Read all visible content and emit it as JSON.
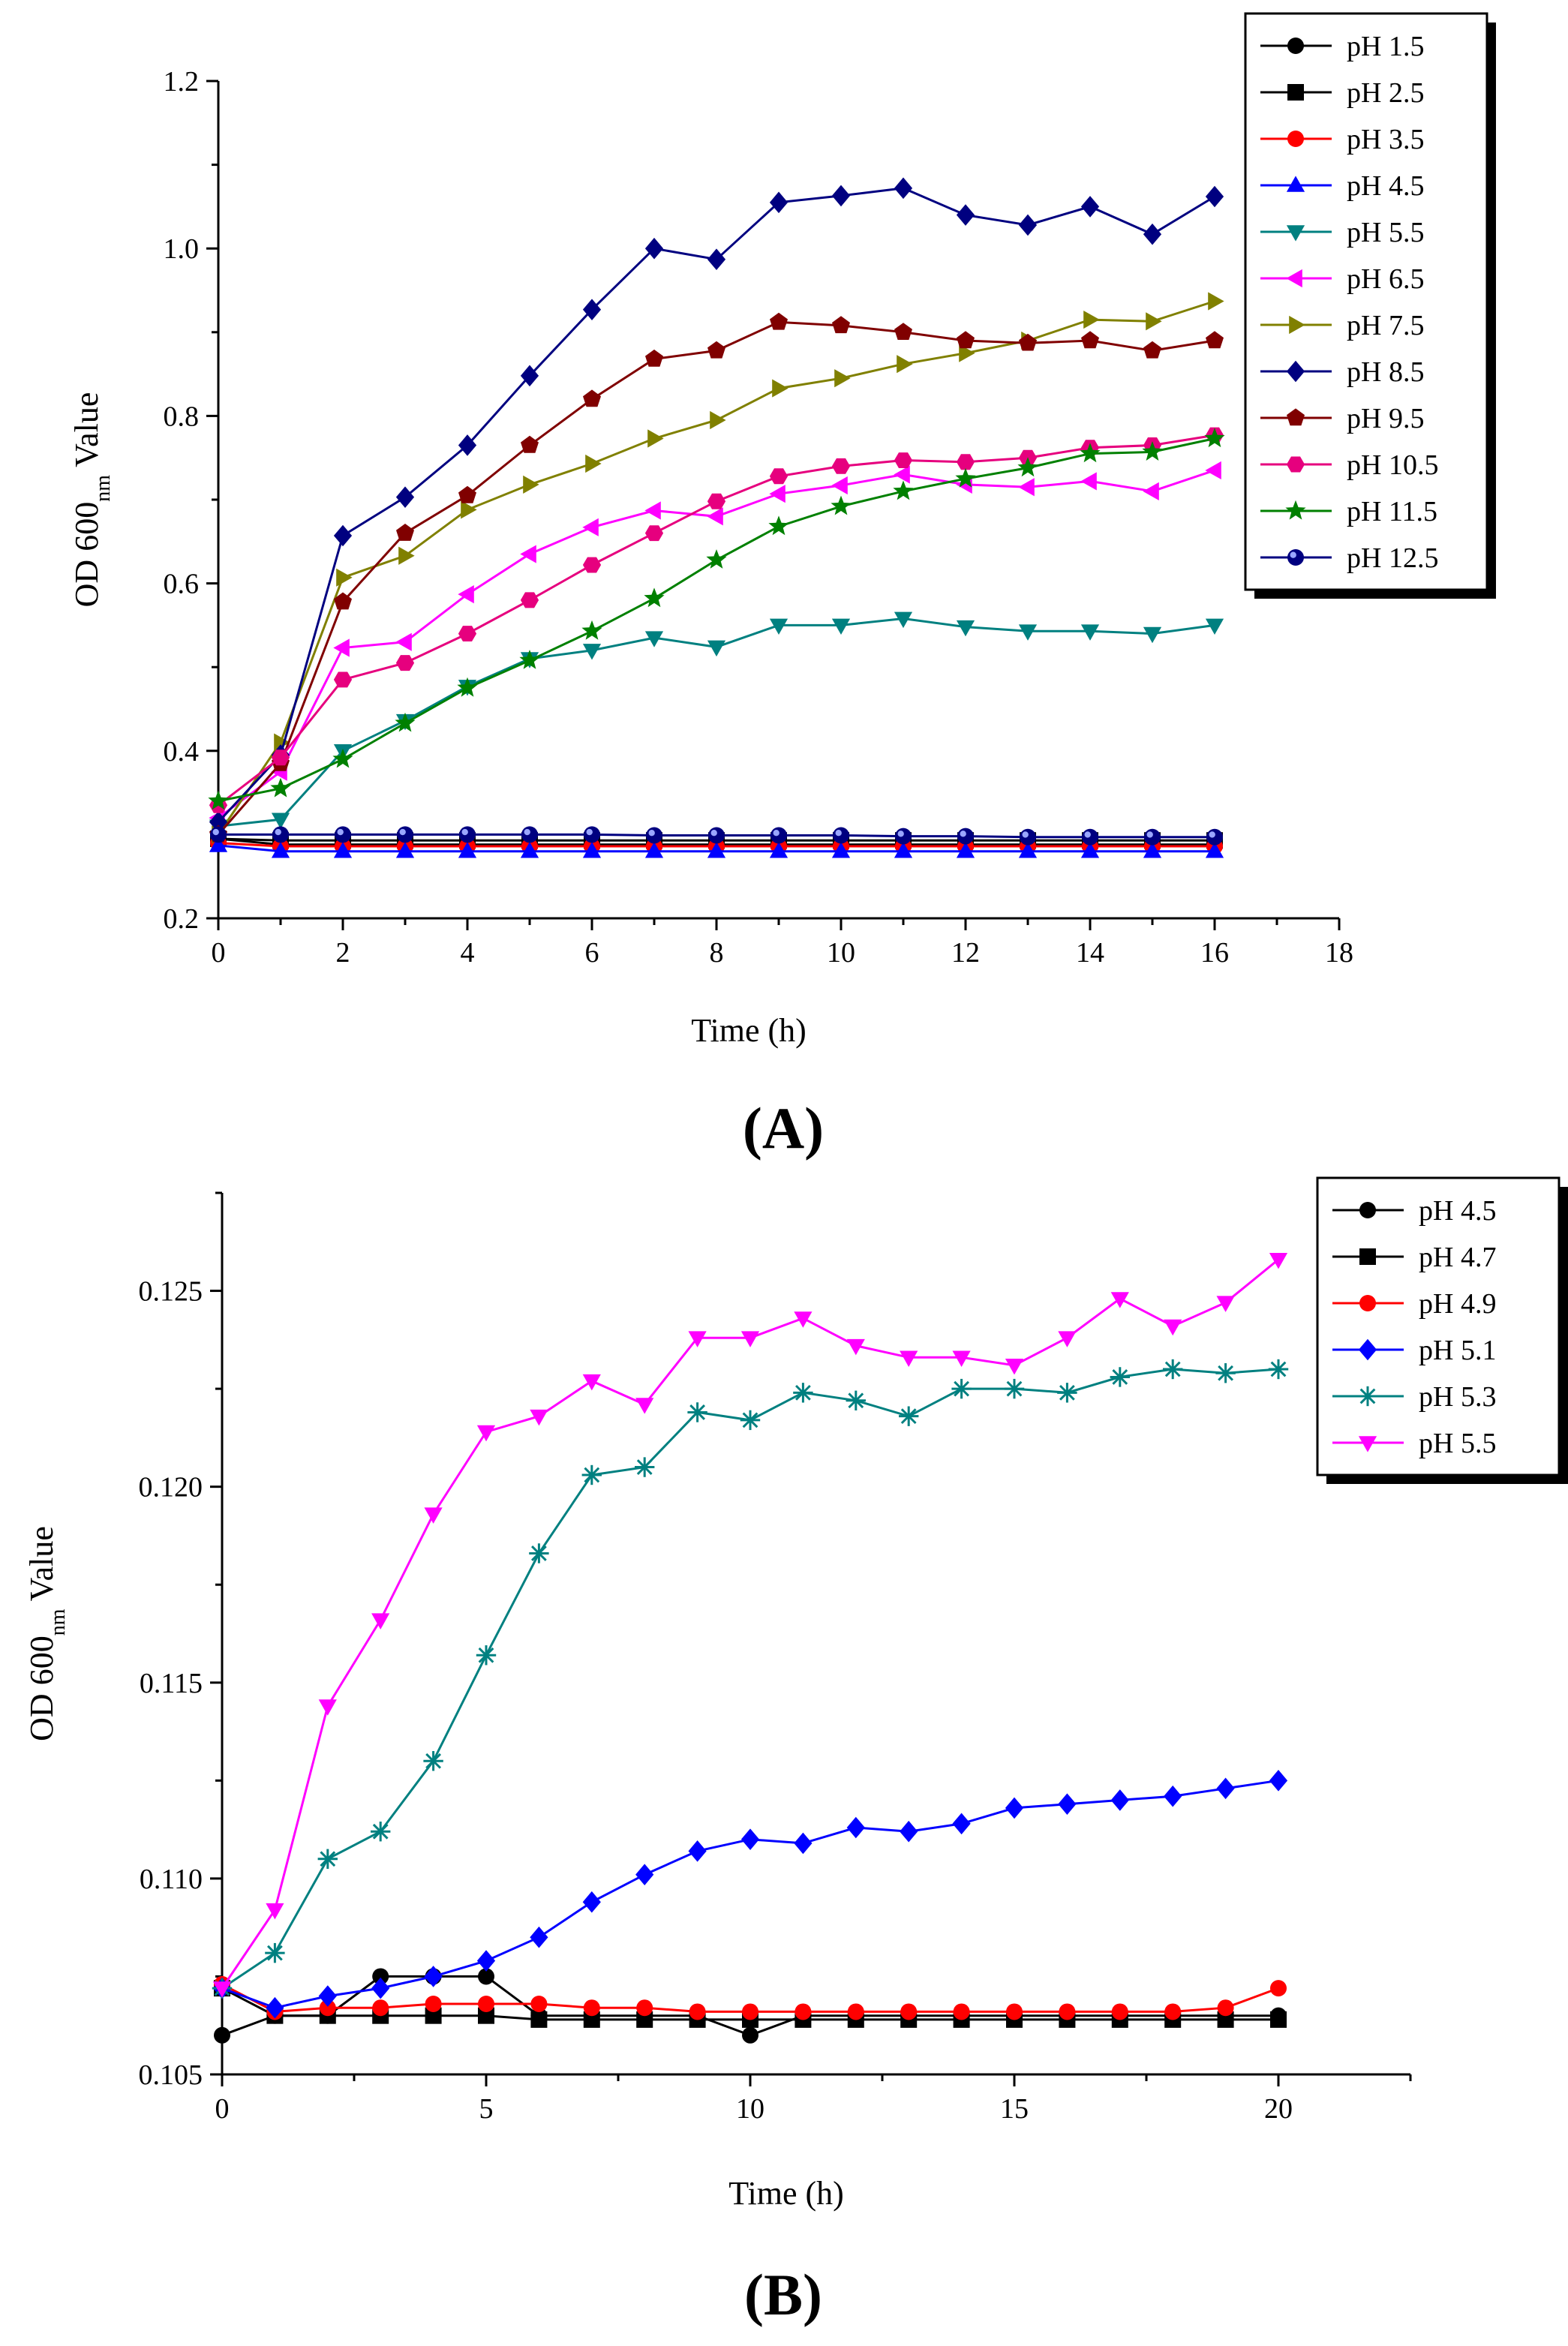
{
  "chart_data": [
    {
      "type": "line",
      "panel_label": "(A)",
      "xlabel": "Time (h)",
      "ylabel_main": "OD 600",
      "ylabel_sub": "nm",
      "ylabel_tail": " Value",
      "xlim": [
        0,
        18
      ],
      "ylim": [
        0.2,
        1.2
      ],
      "xticks": [
        0,
        2,
        4,
        6,
        8,
        10,
        12,
        14,
        16,
        18
      ],
      "yticks": [
        0.2,
        0.4,
        0.6,
        0.8,
        1.0,
        1.2
      ],
      "xtick_labels": [
        "0",
        "2",
        "4",
        "6",
        "8",
        "10",
        "12",
        "14",
        "16",
        "18"
      ],
      "ytick_labels": [
        "0.2",
        "0.4",
        "0.6",
        "0.8",
        "1.0",
        "1.2"
      ],
      "x": [
        0,
        1,
        2,
        3,
        4,
        5,
        6,
        7,
        8,
        9,
        10,
        11,
        12,
        13,
        14,
        15,
        16
      ],
      "legend_position": "top-right",
      "series": [
        {
          "name": "pH 1.5",
          "color": "#000000",
          "marker": "circle",
          "values": [
            0.295,
            0.288,
            0.288,
            0.288,
            0.288,
            0.288,
            0.288,
            0.288,
            0.288,
            0.288,
            0.288,
            0.288,
            0.288,
            0.288,
            0.288,
            0.288,
            0.288
          ]
        },
        {
          "name": "pH 2.5",
          "color": "#000000",
          "marker": "square",
          "values": [
            0.295,
            0.293,
            0.293,
            0.293,
            0.293,
            0.293,
            0.293,
            0.293,
            0.293,
            0.293,
            0.293,
            0.293,
            0.293,
            0.293,
            0.293,
            0.293,
            0.293
          ]
        },
        {
          "name": "pH 3.5",
          "color": "#ff0000",
          "marker": "circle",
          "values": [
            0.29,
            0.286,
            0.286,
            0.286,
            0.286,
            0.286,
            0.286,
            0.286,
            0.286,
            0.286,
            0.286,
            0.286,
            0.286,
            0.286,
            0.286,
            0.286,
            0.286
          ]
        },
        {
          "name": "pH 4.5",
          "color": "#0000ff",
          "marker": "triangle-up",
          "values": [
            0.287,
            0.28,
            0.28,
            0.28,
            0.28,
            0.28,
            0.28,
            0.28,
            0.28,
            0.28,
            0.28,
            0.28,
            0.28,
            0.28,
            0.28,
            0.28,
            0.28
          ]
        },
        {
          "name": "pH 5.5",
          "color": "#008080",
          "marker": "triangle-down",
          "values": [
            0.31,
            0.318,
            0.4,
            0.436,
            0.477,
            0.51,
            0.52,
            0.535,
            0.524,
            0.55,
            0.55,
            0.558,
            0.548,
            0.543,
            0.543,
            0.54,
            0.55
          ]
        },
        {
          "name": "pH 6.5",
          "color": "#ff00ff",
          "marker": "triangle-left",
          "values": [
            0.32,
            0.375,
            0.523,
            0.53,
            0.587,
            0.635,
            0.667,
            0.687,
            0.68,
            0.707,
            0.717,
            0.73,
            0.718,
            0.715,
            0.722,
            0.71,
            0.735
          ]
        },
        {
          "name": "pH 7.5",
          "color": "#808000",
          "marker": "triangle-right",
          "values": [
            0.3,
            0.41,
            0.607,
            0.633,
            0.688,
            0.718,
            0.743,
            0.773,
            0.795,
            0.833,
            0.845,
            0.862,
            0.875,
            0.89,
            0.915,
            0.913,
            0.937
          ]
        },
        {
          "name": "pH 8.5",
          "color": "#000080",
          "marker": "diamond",
          "values": [
            0.315,
            0.395,
            0.657,
            0.703,
            0.765,
            0.848,
            0.927,
            1.0,
            0.987,
            1.055,
            1.063,
            1.072,
            1.04,
            1.028,
            1.05,
            1.017,
            1.062
          ]
        },
        {
          "name": "pH 9.5",
          "color": "#800000",
          "marker": "pentagon",
          "values": [
            0.3,
            0.385,
            0.578,
            0.66,
            0.705,
            0.765,
            0.82,
            0.868,
            0.878,
            0.912,
            0.908,
            0.9,
            0.89,
            0.887,
            0.89,
            0.878,
            0.89
          ]
        },
        {
          "name": "pH 10.5",
          "color": "#e6007e",
          "marker": "hexagon",
          "values": [
            0.335,
            0.392,
            0.485,
            0.505,
            0.54,
            0.58,
            0.622,
            0.66,
            0.698,
            0.728,
            0.74,
            0.747,
            0.745,
            0.75,
            0.762,
            0.765,
            0.777
          ]
        },
        {
          "name": "pH 11.5",
          "color": "#008000",
          "marker": "star",
          "values": [
            0.34,
            0.355,
            0.39,
            0.433,
            0.475,
            0.508,
            0.543,
            0.582,
            0.628,
            0.668,
            0.692,
            0.71,
            0.725,
            0.738,
            0.755,
            0.757,
            0.773
          ]
        },
        {
          "name": "pH 12.5",
          "color": "#000080",
          "marker": "sphere",
          "values": [
            0.3,
            0.3,
            0.3,
            0.3,
            0.3,
            0.3,
            0.3,
            0.299,
            0.299,
            0.299,
            0.299,
            0.298,
            0.298,
            0.297,
            0.297,
            0.297,
            0.297
          ]
        }
      ]
    },
    {
      "type": "line",
      "panel_label": "(B)",
      "xlabel": "Time (h)",
      "ylabel_main": "OD 600",
      "ylabel_sub": "nm",
      "ylabel_tail": " Value",
      "xlim": [
        0,
        22.5
      ],
      "ylim": [
        0.105,
        0.1275
      ],
      "xticks": [
        0,
        5,
        10,
        15,
        20
      ],
      "yticks": [
        0.105,
        0.11,
        0.115,
        0.12,
        0.125
      ],
      "xtick_labels": [
        "0",
        "5",
        "10",
        "15",
        "20"
      ],
      "ytick_labels": [
        "0.105",
        "0.110",
        "0.115",
        "0.120",
        "0.125"
      ],
      "x": [
        0,
        1,
        2,
        3,
        4,
        5,
        6,
        7,
        8,
        9,
        10,
        11,
        12,
        13,
        14,
        15,
        16,
        17,
        18,
        19,
        20
      ],
      "legend_position": "top-right",
      "series": [
        {
          "name": "pH 4.5",
          "color": "#000000",
          "marker": "circle",
          "values": [
            0.106,
            0.1065,
            0.1065,
            0.1075,
            0.1075,
            0.1075,
            0.1065,
            0.1065,
            0.1065,
            0.1065,
            0.106,
            0.1065,
            0.1065,
            0.1065,
            0.1065,
            0.1065,
            0.1065,
            0.1065,
            0.1065,
            0.1065,
            0.1065
          ]
        },
        {
          "name": "pH 4.7",
          "color": "#000000",
          "marker": "square",
          "values": [
            0.1072,
            0.1065,
            0.1065,
            0.1065,
            0.1065,
            0.1065,
            0.1064,
            0.1064,
            0.1064,
            0.1064,
            0.1064,
            0.1064,
            0.1064,
            0.1064,
            0.1064,
            0.1064,
            0.1064,
            0.1064,
            0.1064,
            0.1064,
            0.1064
          ]
        },
        {
          "name": "pH 4.9",
          "color": "#ff0000",
          "marker": "circle",
          "values": [
            0.1073,
            0.1066,
            0.1067,
            0.1067,
            0.1068,
            0.1068,
            0.1068,
            0.1067,
            0.1067,
            0.1066,
            0.1066,
            0.1066,
            0.1066,
            0.1066,
            0.1066,
            0.1066,
            0.1066,
            0.1066,
            0.1066,
            0.1067,
            0.1072
          ]
        },
        {
          "name": "pH 5.1",
          "color": "#0000ff",
          "marker": "diamond",
          "values": [
            0.1072,
            0.1067,
            0.107,
            0.1072,
            0.1075,
            0.1079,
            0.1085,
            0.1094,
            0.1101,
            0.1107,
            0.111,
            0.1109,
            0.1113,
            0.1112,
            0.1114,
            0.1118,
            0.1119,
            0.112,
            0.1121,
            0.1123,
            0.1125
          ]
        },
        {
          "name": "pH 5.3",
          "color": "#008080",
          "marker": "asterisk",
          "values": [
            0.1072,
            0.1081,
            0.1105,
            0.1112,
            0.113,
            0.1157,
            0.1183,
            0.1203,
            0.1205,
            0.1219,
            0.1217,
            0.1224,
            0.1222,
            0.1218,
            0.1225,
            0.1225,
            0.1224,
            0.1228,
            0.123,
            0.1229,
            0.123
          ]
        },
        {
          "name": "pH 5.5",
          "color": "#ff00ff",
          "marker": "triangle-down",
          "values": [
            0.1072,
            0.1092,
            0.1144,
            0.1166,
            0.1193,
            0.1214,
            0.1218,
            0.1227,
            0.1221,
            0.1238,
            0.1238,
            0.1243,
            0.1236,
            0.1233,
            0.1233,
            0.1231,
            0.1238,
            0.1248,
            0.1241,
            0.1247,
            0.1258
          ]
        }
      ]
    }
  ]
}
